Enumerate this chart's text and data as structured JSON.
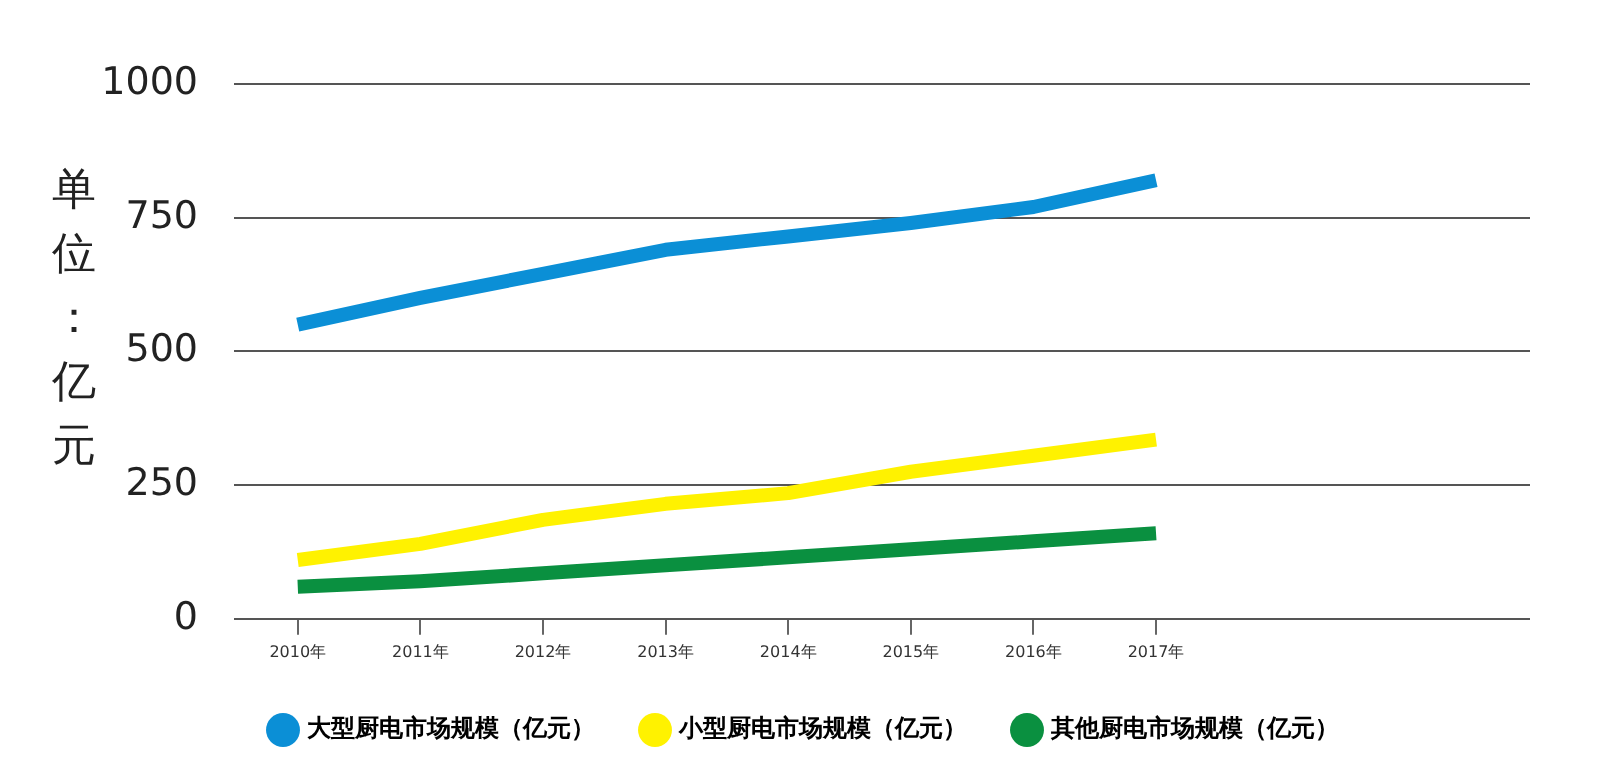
{
  "chart_data": {
    "type": "line",
    "ylabel": "单位：亿元",
    "categories": [
      "2010年",
      "2011年",
      "2012年",
      "2013年",
      "2014年",
      "2015年",
      "2016年",
      "2017年"
    ],
    "series": [
      {
        "name": "大型厨电市场规模（亿元）",
        "color": "#0b8fd6",
        "values": [
          550,
          600,
          645,
          690,
          715,
          740,
          770,
          820
        ]
      },
      {
        "name": "小型厨电市场规模（亿元）",
        "color": "#fff200",
        "values": [
          110,
          140,
          185,
          215,
          235,
          275,
          305,
          335
        ]
      },
      {
        "name": "其他厨电市场规模（亿元）",
        "color": "#0a9040",
        "values": [
          60,
          70,
          85,
          100,
          115,
          130,
          145,
          160
        ]
      }
    ],
    "ylim": [
      0,
      1000
    ],
    "yticks": [
      0,
      250,
      500,
      750,
      1000
    ],
    "grid": "y",
    "legend": "bottom",
    "marker": "none",
    "line_style": "solid"
  }
}
